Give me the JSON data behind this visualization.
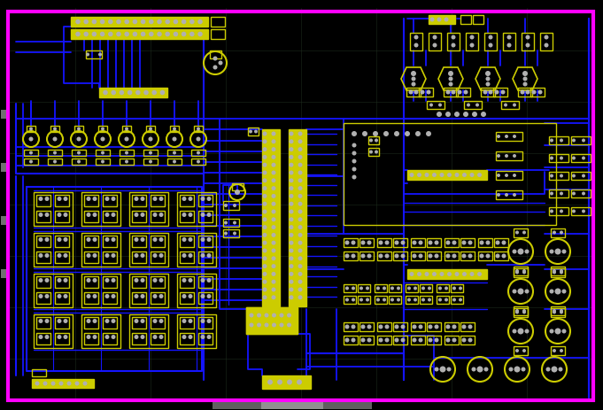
{
  "background_color": "#000000",
  "border_color": "#FF00FF",
  "grid_color": "#1C2A1C",
  "trace_color": "#1414FF",
  "component_color": "#CCCC00",
  "via_color": "#B0B0B0",
  "fig_width": 6.81,
  "fig_height": 4.64,
  "dpi": 100
}
